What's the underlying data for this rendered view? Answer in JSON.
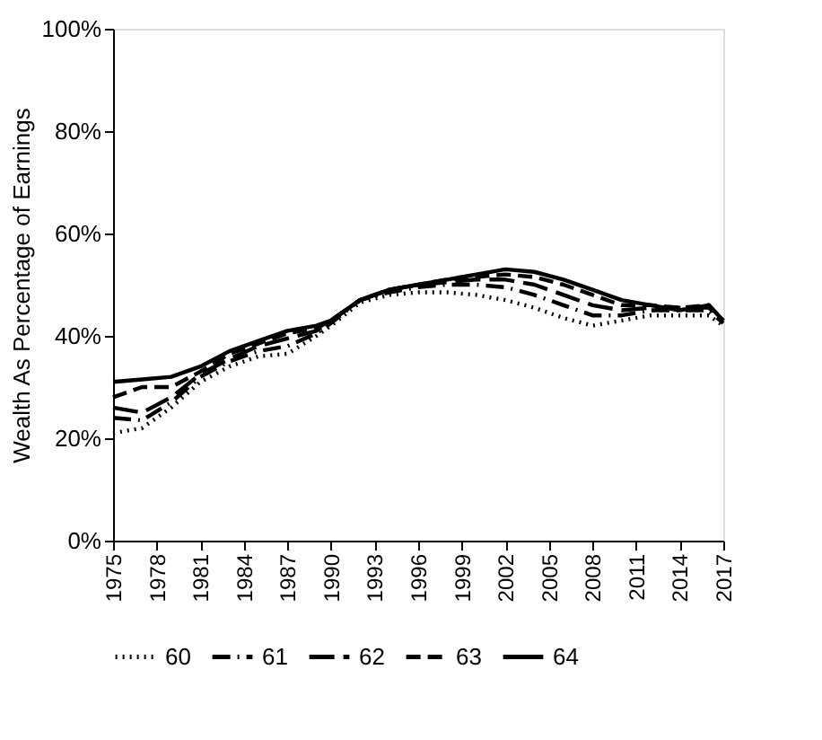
{
  "chart_data": {
    "type": "line",
    "ylabel": "Wealth As Percentage of Earnings",
    "x": [
      1975,
      1977,
      1979,
      1981,
      1983,
      1985,
      1987,
      1989,
      1990,
      1992,
      1994,
      1996,
      1998,
      2000,
      2002,
      2004,
      2006,
      2008,
      2010,
      2012,
      2014,
      2016,
      2017
    ],
    "series": [
      {
        "name": "60",
        "color": "#000000",
        "line_style": "dotted",
        "values": [
          21,
          22,
          26,
          31,
          34,
          36,
          36.5,
          40,
          42,
          46.5,
          48,
          48.5,
          48.5,
          48,
          47,
          45.5,
          43.5,
          42,
          43,
          44,
          44,
          44,
          42
        ]
      },
      {
        "name": "61",
        "color": "#000000",
        "line_style": "dashdot",
        "values": [
          24,
          23.5,
          27,
          32,
          35,
          37,
          38,
          40.5,
          42.5,
          47,
          48.5,
          49.5,
          50,
          50,
          49.5,
          48,
          46,
          44,
          44,
          45,
          45,
          45,
          42.5
        ]
      },
      {
        "name": "62",
        "color": "#000000",
        "line_style": "longdash",
        "values": [
          26,
          25,
          28,
          32.5,
          35.5,
          38,
          39.5,
          41,
          43,
          47,
          49,
          50,
          50.5,
          51,
          51,
          50,
          48,
          46,
          45,
          45.5,
          45.5,
          45.5,
          43
        ]
      },
      {
        "name": "63",
        "color": "#000000",
        "line_style": "dashed",
        "values": [
          28,
          30,
          30,
          33,
          36.5,
          38.5,
          40.5,
          41.5,
          43,
          47,
          49,
          50,
          51,
          51.5,
          52,
          51.5,
          50,
          48,
          46,
          46,
          45.5,
          46,
          43
        ]
      },
      {
        "name": "64",
        "color": "#000000",
        "line_style": "solid",
        "values": [
          31,
          31.5,
          32,
          34,
          37,
          39,
          41,
          42,
          43,
          47,
          49,
          50,
          51,
          52,
          53,
          52.5,
          51,
          49,
          47,
          46,
          45,
          46,
          43
        ]
      }
    ],
    "xlim": [
      1975,
      2017
    ],
    "xticks": [
      1975,
      1978,
      1981,
      1984,
      1987,
      1990,
      1993,
      1996,
      1999,
      2002,
      2005,
      2008,
      2011,
      2014,
      2017
    ],
    "ylim": [
      0,
      100
    ],
    "yticks": [
      {
        "value": 0,
        "label": "0%"
      },
      {
        "value": 20,
        "label": "20%"
      },
      {
        "value": 40,
        "label": "40%"
      },
      {
        "value": 60,
        "label": "60%"
      },
      {
        "value": 80,
        "label": "80%"
      },
      {
        "value": 100,
        "label": "100%"
      }
    ],
    "grid": false,
    "legend": "bottom",
    "marker": "none"
  }
}
